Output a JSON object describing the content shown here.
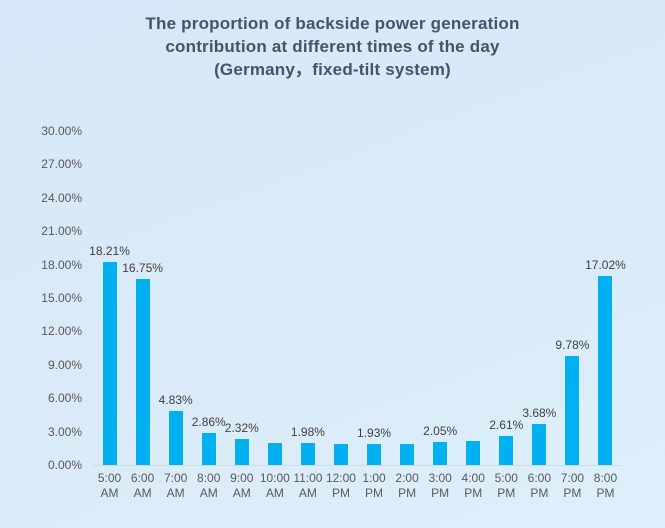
{
  "title": {
    "lines": [
      "The proportion of backside power generation",
      "contribution at different times of the day",
      "(Germany，fixed-tilt system)"
    ],
    "color": "#44546A"
  },
  "chart_data": {
    "type": "bar",
    "title": "The proportion of backside power generation contribution at different times of the day (Germany，fixed-tilt system)",
    "categories": [
      "5:00 AM",
      "6:00 AM",
      "7:00 AM",
      "8:00 AM",
      "9:00 AM",
      "10:00 AM",
      "11:00 AM",
      "12:00 PM",
      "1:00 PM",
      "2:00 PM",
      "3:00 PM",
      "4:00 PM",
      "5:00 PM",
      "6:00 PM",
      "7:00 PM",
      "8:00 PM"
    ],
    "values": [
      18.21,
      16.75,
      4.83,
      2.86,
      2.32,
      1.95,
      1.98,
      1.87,
      1.93,
      1.9,
      2.05,
      2.18,
      2.61,
      3.68,
      9.78,
      17.02
    ],
    "data_labels": [
      "18.21%",
      "16.75%",
      "4.83%",
      "2.86%",
      "2.32%",
      null,
      "1.98%",
      null,
      "1.93%",
      null,
      "2.05%",
      null,
      "2.61%",
      "3.68%",
      "9.78%",
      "17.02%"
    ],
    "xlabel": "",
    "ylabel": "",
    "ylim": [
      0,
      30
    ],
    "ytick_step": 3,
    "yticks": [
      "0.00%",
      "3.00%",
      "6.00%",
      "9.00%",
      "12.00%",
      "15.00%",
      "18.00%",
      "21.00%",
      "24.00%",
      "27.00%",
      "30.00%"
    ],
    "grid": false,
    "legend": "none",
    "bar_color": "#00B0F0",
    "axis_line_color": "#D3DBE1",
    "tick_label_color": "#595959",
    "data_label_color": "#404040",
    "background": "#DAEAF8"
  }
}
